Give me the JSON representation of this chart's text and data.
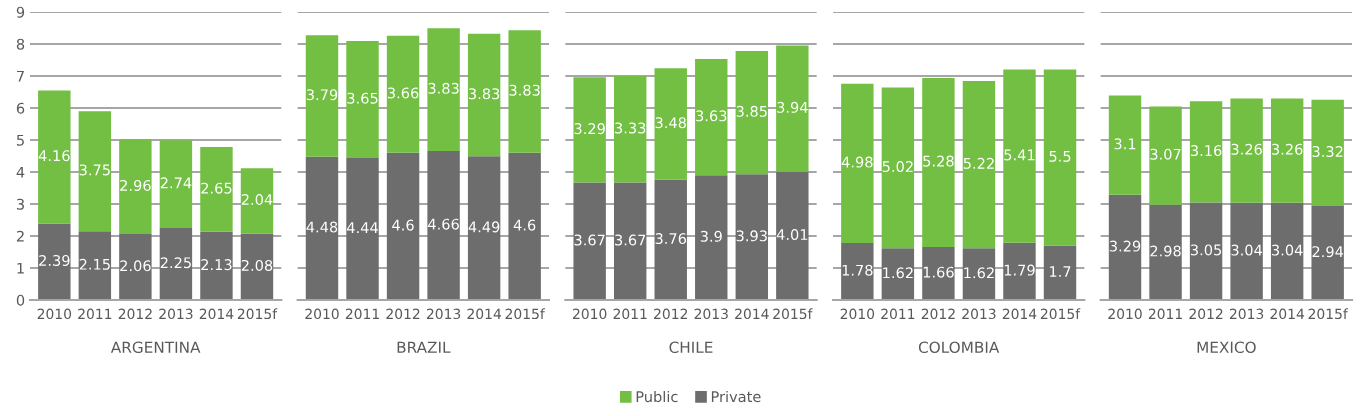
{
  "chart_data": [
    {
      "type": "bar",
      "stacked": true,
      "xlabel": "ARGENTINA",
      "categories": [
        "2010",
        "2011",
        "2012",
        "2013",
        "2014",
        "2015f"
      ],
      "ylim": [
        0,
        9
      ],
      "yticks": [
        0,
        1,
        2,
        3,
        4,
        5,
        6,
        7,
        8,
        9
      ],
      "grid": "y",
      "data_labels": true,
      "series": [
        {
          "color": "#6d6d6d",
          "values": [
            2.39,
            2.15,
            2.06,
            2.25,
            2.13,
            2.08
          ]
        },
        {
          "color": "#72bf44",
          "values": [
            4.16,
            3.75,
            2.96,
            2.74,
            2.65,
            2.04
          ]
        }
      ]
    },
    {
      "type": "bar",
      "stacked": true,
      "xlabel": "BRAZIL",
      "categories": [
        "2010",
        "2011",
        "2012",
        "2013",
        "2014",
        "2015f"
      ],
      "ylim": [
        0,
        9
      ],
      "grid": "y",
      "data_labels": true,
      "tick_labels": "x",
      "series": [
        {
          "color": "#6d6d6d",
          "values": [
            4.48,
            4.44,
            4.6,
            4.66,
            4.49,
            4.6
          ]
        },
        {
          "color": "#72bf44",
          "values": [
            3.79,
            3.65,
            3.66,
            3.83,
            3.83,
            3.83
          ]
        }
      ]
    },
    {
      "type": "bar",
      "stacked": true,
      "xlabel": "CHILE",
      "categories": [
        "2010",
        "2011",
        "2012",
        "2013",
        "2014",
        "2015f"
      ],
      "ylim": [
        0,
        9
      ],
      "grid": "y",
      "data_labels": true,
      "tick_labels": "x",
      "legend": "bottom",
      "series": [
        {
          "name": "Private",
          "color": "#6d6d6d",
          "values": [
            3.67,
            3.67,
            3.76,
            3.9,
            3.93,
            4.01
          ]
        },
        {
          "name": "Public",
          "color": "#72bf44",
          "values": [
            3.29,
            3.33,
            3.48,
            3.63,
            3.85,
            3.94
          ]
        }
      ]
    },
    {
      "type": "bar",
      "stacked": true,
      "xlabel": "COLOMBIA",
      "categories": [
        "2010",
        "2011",
        "2012",
        "2013",
        "2014",
        "2015f"
      ],
      "ylim": [
        0,
        9
      ],
      "grid": "y",
      "data_labels": true,
      "tick_labels": "x",
      "series": [
        {
          "color": "#6d6d6d",
          "values": [
            1.78,
            1.62,
            1.66,
            1.62,
            1.79,
            1.7
          ]
        },
        {
          "color": "#72bf44",
          "values": [
            4.98,
            5.02,
            5.28,
            5.22,
            5.41,
            5.5
          ]
        }
      ]
    },
    {
      "type": "bar",
      "stacked": true,
      "xlabel": "MEXICO",
      "categories": [
        "2010",
        "2011",
        "2012",
        "2013",
        "2014",
        "2015f"
      ],
      "ylim": [
        0,
        9
      ],
      "grid": "y",
      "data_labels": true,
      "tick_labels": "x",
      "series": [
        {
          "color": "#6d6d6d",
          "values": [
            3.29,
            2.98,
            3.05,
            3.04,
            3.04,
            2.94
          ]
        },
        {
          "color": "#72bf44",
          "values": [
            3.1,
            3.07,
            3.16,
            3.26,
            3.26,
            3.32
          ]
        }
      ]
    }
  ]
}
